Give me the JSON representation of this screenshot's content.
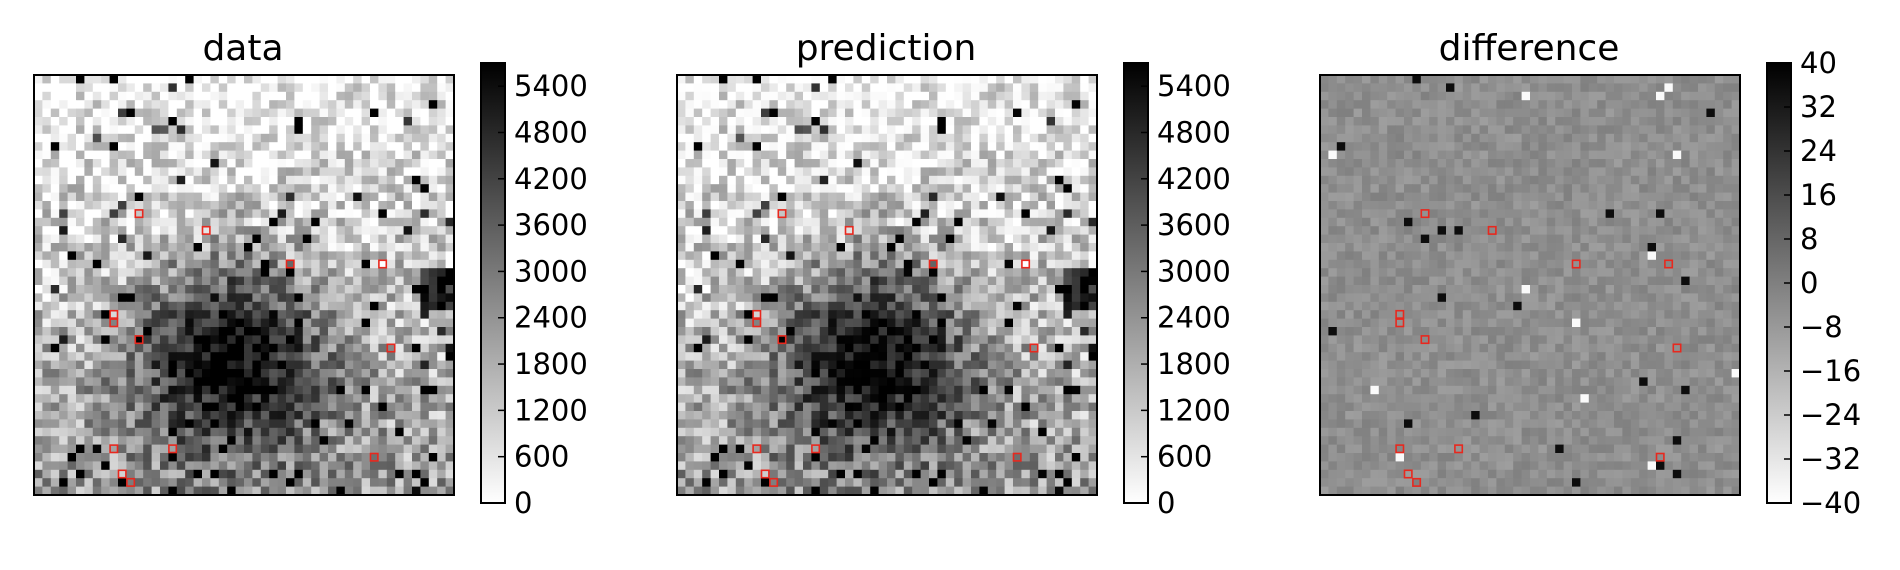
{
  "chart_data": [
    {
      "type": "heatmap",
      "title": "data",
      "colormap": "gray_r",
      "colorbar": {
        "ticks": [
          "0",
          "600",
          "1200",
          "1800",
          "2400",
          "3000",
          "3600",
          "4200",
          "4800",
          "5400"
        ],
        "range": [
          0,
          5700
        ]
      },
      "marked_pixels": [
        [
          12,
          16
        ],
        [
          20,
          18
        ],
        [
          30,
          22
        ],
        [
          41,
          22
        ],
        [
          9,
          28
        ],
        [
          9,
          29
        ],
        [
          12,
          31
        ],
        [
          42,
          32
        ],
        [
          9,
          44
        ],
        [
          16,
          44
        ],
        [
          40,
          45
        ],
        [
          10,
          47
        ],
        [
          11,
          48
        ]
      ]
    },
    {
      "type": "heatmap",
      "title": "prediction",
      "colormap": "gray_r",
      "colorbar": {
        "ticks": [
          "0",
          "600",
          "1200",
          "1800",
          "2400",
          "3000",
          "3600",
          "4200",
          "4800",
          "5400"
        ],
        "range": [
          0,
          5700
        ]
      },
      "marked_pixels": [
        [
          12,
          16
        ],
        [
          20,
          18
        ],
        [
          30,
          22
        ],
        [
          41,
          22
        ],
        [
          9,
          28
        ],
        [
          9,
          29
        ],
        [
          12,
          31
        ],
        [
          42,
          32
        ],
        [
          9,
          44
        ],
        [
          16,
          44
        ],
        [
          40,
          45
        ],
        [
          10,
          47
        ],
        [
          11,
          48
        ]
      ]
    },
    {
      "type": "heatmap",
      "title": "difference",
      "colormap": "gray_r",
      "colorbar": {
        "ticks": [
          "40",
          "32",
          "24",
          "16",
          "8",
          "0",
          "−8",
          "−16",
          "−24",
          "−32",
          "−40"
        ],
        "range": [
          -40,
          40
        ]
      },
      "marked_pixels": [
        [
          12,
          16
        ],
        [
          20,
          18
        ],
        [
          30,
          22
        ],
        [
          41,
          22
        ],
        [
          9,
          28
        ],
        [
          9,
          29
        ],
        [
          12,
          31
        ],
        [
          42,
          32
        ],
        [
          9,
          44
        ],
        [
          16,
          44
        ],
        [
          40,
          45
        ],
        [
          10,
          47
        ],
        [
          11,
          48
        ]
      ]
    }
  ],
  "marker_color": "#e8281e"
}
